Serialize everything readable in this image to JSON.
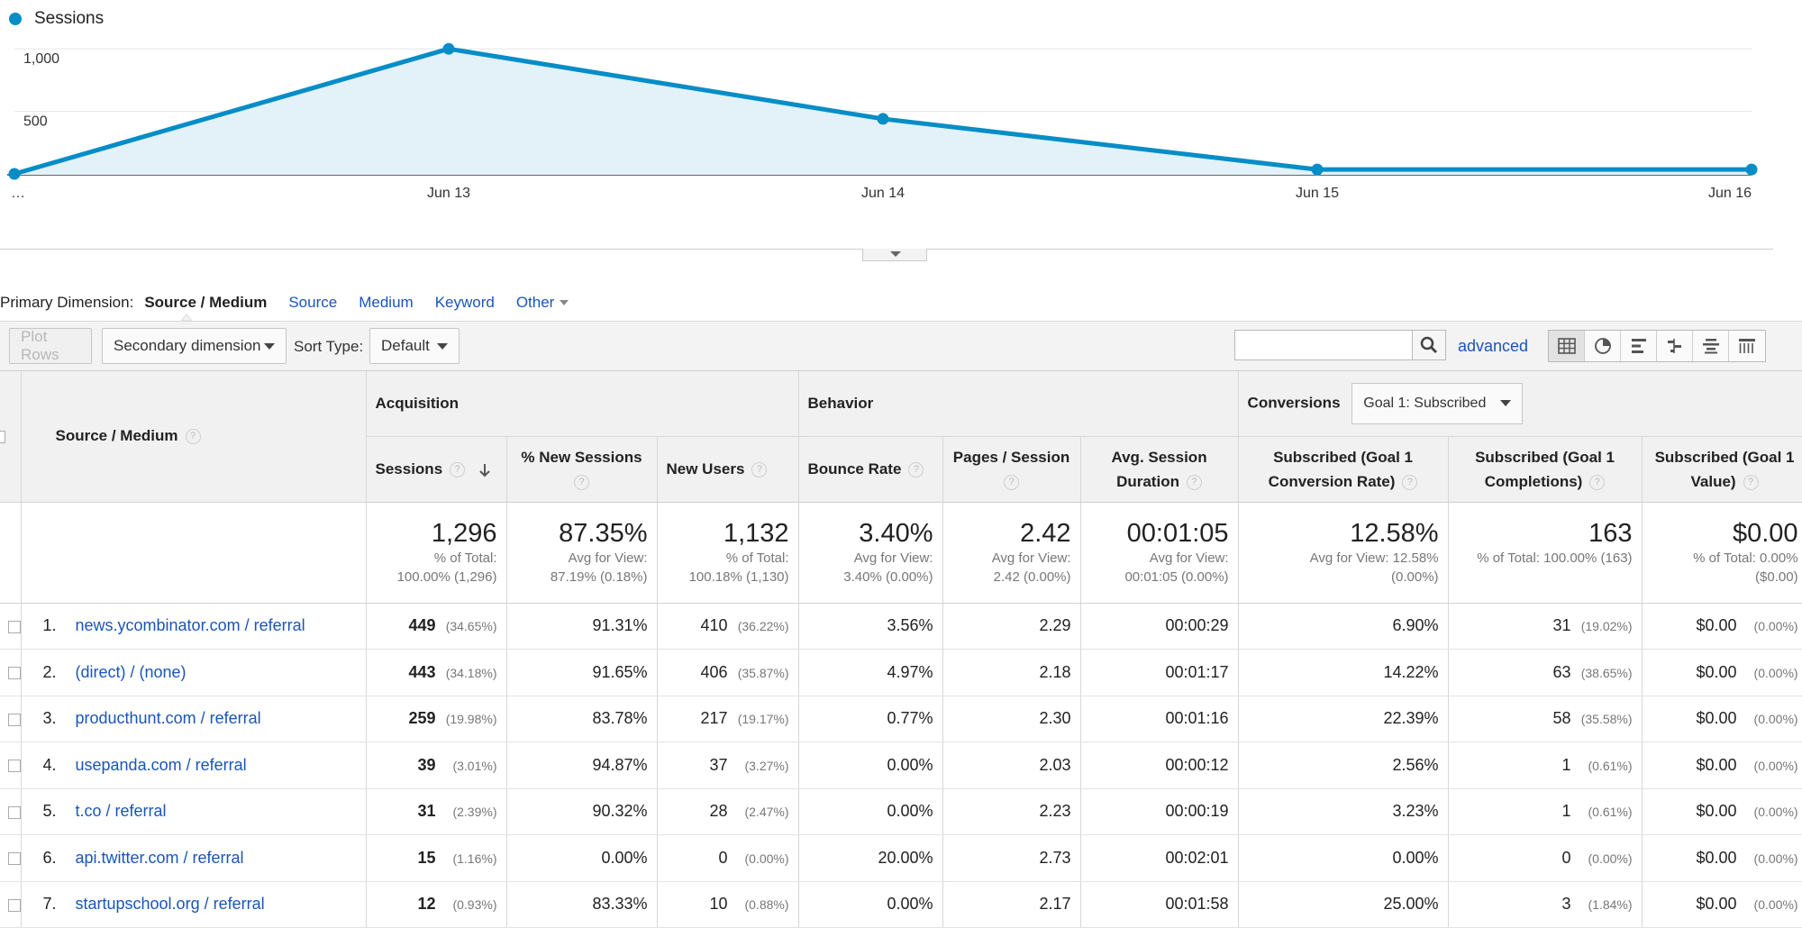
{
  "legend": {
    "label": "Sessions",
    "color": "#058dc7"
  },
  "chart_data": {
    "type": "area",
    "title": "",
    "series": [
      {
        "name": "Sessions",
        "values": [
          0,
          1000,
          440,
          35,
          35
        ]
      }
    ],
    "x_labels": [
      "…",
      "Jun 13",
      "Jun 14",
      "Jun 15",
      "Jun 16"
    ],
    "y_ticks": [
      {
        "value": 1000,
        "label": "1,000"
      },
      {
        "value": 500,
        "label": "500"
      }
    ],
    "ylim": [
      0,
      1160
    ],
    "grid": true,
    "line_color": "#058dc7",
    "fill_color": "#e3f1f9"
  },
  "primary_dimension": {
    "label": "Primary Dimension:",
    "active": "Source / Medium",
    "links": [
      "Source",
      "Medium",
      "Keyword"
    ],
    "other": "Other"
  },
  "toolbar": {
    "plot_rows": "Plot Rows",
    "secondary_dimension": "Secondary dimension",
    "sort_type_label": "Sort Type:",
    "sort_type_value": "Default",
    "search_value": "",
    "advanced": "advanced",
    "view_icons": [
      "table-view-icon",
      "pie-view-icon",
      "bar-view-icon",
      "comparison-view-icon",
      "term-cloud-view-icon",
      "pivot-view-icon"
    ]
  },
  "table": {
    "groups": {
      "dimension": "Source / Medium",
      "acquisition": "Acquisition",
      "behavior": "Behavior",
      "conversions": "Conversions",
      "conversions_select": "Goal 1: Subscribed"
    },
    "columns": [
      "Sessions",
      "% New Sessions",
      "New Users",
      "Bounce Rate",
      "Pages / Session",
      "Avg. Session Duration",
      "Subscribed (Goal 1 Conversion Rate)",
      "Subscribed (Goal 1 Completions)",
      "Subscribed (Goal 1 Value)"
    ],
    "totals": [
      {
        "main": "1,296",
        "sub1": "% of Total:",
        "sub2": "100.00% (1,296)"
      },
      {
        "main": "87.35%",
        "sub1": "Avg for View:",
        "sub2": "87.19% (0.18%)"
      },
      {
        "main": "1,132",
        "sub1": "% of Total:",
        "sub2": "100.18% (1,130)"
      },
      {
        "main": "3.40%",
        "sub1": "Avg for View:",
        "sub2": "3.40% (0.00%)"
      },
      {
        "main": "2.42",
        "sub1": "Avg for View:",
        "sub2": "2.42 (0.00%)"
      },
      {
        "main": "00:01:05",
        "sub1": "Avg for View:",
        "sub2": "00:01:05 (0.00%)"
      },
      {
        "main": "12.58%",
        "sub1": "Avg for View: 12.58%",
        "sub2": "(0.00%)"
      },
      {
        "main": "163",
        "sub1": "% of Total: 100.00% (163)",
        "sub2": ""
      },
      {
        "main": "$0.00",
        "sub1": "% of Total: 0.00%",
        "sub2": "($0.00)"
      }
    ],
    "rows": [
      {
        "idx": "1.",
        "dim": "news.ycombinator.com / referral",
        "sessions": "449",
        "sessions_pct": "(34.65%)",
        "new_sessions": "91.31%",
        "new_users": "410",
        "new_users_pct": "(36.22%)",
        "bounce": "3.56%",
        "pages": "2.29",
        "duration": "00:00:29",
        "conv_rate": "6.90%",
        "completions": "31",
        "completions_pct": "(19.02%)",
        "value": "$0.00",
        "value_pct": "(0.00%)"
      },
      {
        "idx": "2.",
        "dim": "(direct) / (none)",
        "sessions": "443",
        "sessions_pct": "(34.18%)",
        "new_sessions": "91.65%",
        "new_users": "406",
        "new_users_pct": "(35.87%)",
        "bounce": "4.97%",
        "pages": "2.18",
        "duration": "00:01:17",
        "conv_rate": "14.22%",
        "completions": "63",
        "completions_pct": "(38.65%)",
        "value": "$0.00",
        "value_pct": "(0.00%)"
      },
      {
        "idx": "3.",
        "dim": "producthunt.com / referral",
        "sessions": "259",
        "sessions_pct": "(19.98%)",
        "new_sessions": "83.78%",
        "new_users": "217",
        "new_users_pct": "(19.17%)",
        "bounce": "0.77%",
        "pages": "2.30",
        "duration": "00:01:16",
        "conv_rate": "22.39%",
        "completions": "58",
        "completions_pct": "(35.58%)",
        "value": "$0.00",
        "value_pct": "(0.00%)"
      },
      {
        "idx": "4.",
        "dim": "usepanda.com / referral",
        "sessions": "39",
        "sessions_pct": "(3.01%)",
        "new_sessions": "94.87%",
        "new_users": "37",
        "new_users_pct": "(3.27%)",
        "bounce": "0.00%",
        "pages": "2.03",
        "duration": "00:00:12",
        "conv_rate": "2.56%",
        "completions": "1",
        "completions_pct": "(0.61%)",
        "value": "$0.00",
        "value_pct": "(0.00%)"
      },
      {
        "idx": "5.",
        "dim": "t.co / referral",
        "sessions": "31",
        "sessions_pct": "(2.39%)",
        "new_sessions": "90.32%",
        "new_users": "28",
        "new_users_pct": "(2.47%)",
        "bounce": "0.00%",
        "pages": "2.23",
        "duration": "00:00:19",
        "conv_rate": "3.23%",
        "completions": "1",
        "completions_pct": "(0.61%)",
        "value": "$0.00",
        "value_pct": "(0.00%)"
      },
      {
        "idx": "6.",
        "dim": "api.twitter.com / referral",
        "sessions": "15",
        "sessions_pct": "(1.16%)",
        "new_sessions": "0.00%",
        "new_users": "0",
        "new_users_pct": "(0.00%)",
        "bounce": "20.00%",
        "pages": "2.73",
        "duration": "00:02:01",
        "conv_rate": "0.00%",
        "completions": "0",
        "completions_pct": "(0.00%)",
        "value": "$0.00",
        "value_pct": "(0.00%)"
      },
      {
        "idx": "7.",
        "dim": "startupschool.org / referral",
        "sessions": "12",
        "sessions_pct": "(0.93%)",
        "new_sessions": "83.33%",
        "new_users": "10",
        "new_users_pct": "(0.88%)",
        "bounce": "0.00%",
        "pages": "2.17",
        "duration": "00:01:58",
        "conv_rate": "25.00%",
        "completions": "3",
        "completions_pct": "(1.84%)",
        "value": "$0.00",
        "value_pct": "(0.00%)"
      }
    ]
  }
}
